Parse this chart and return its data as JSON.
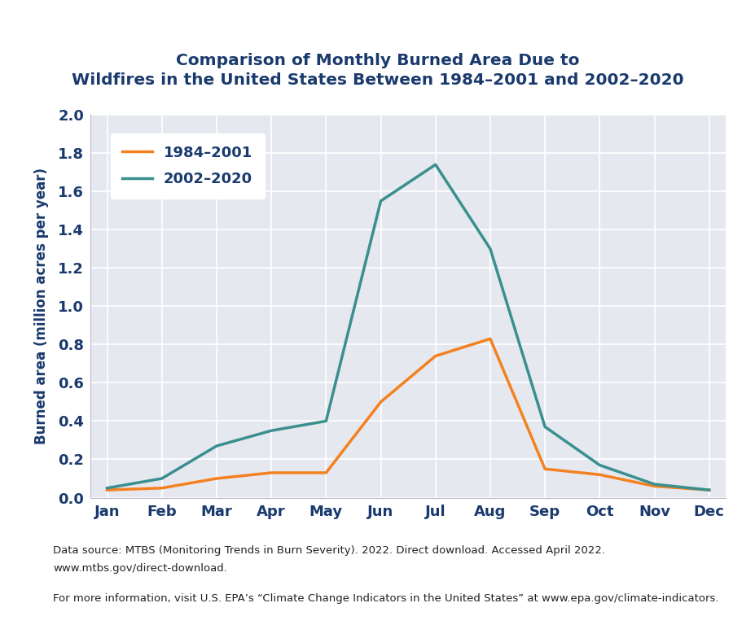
{
  "title_line1": "Comparison of Monthly Burned Area Due to",
  "title_line2": "Wildfires in the United States Between 1984–2001 and 2002–2020",
  "ylabel": "Burned area (million acres per year)",
  "months": [
    "Jan",
    "Feb",
    "Mar",
    "Apr",
    "May",
    "Jun",
    "Jul",
    "Aug",
    "Sep",
    "Oct",
    "Nov",
    "Dec"
  ],
  "series_1984": [
    0.04,
    0.05,
    0.1,
    0.13,
    0.13,
    0.5,
    0.74,
    0.83,
    0.15,
    0.12,
    0.06,
    0.04
  ],
  "series_2002": [
    0.05,
    0.1,
    0.27,
    0.35,
    0.4,
    1.55,
    1.74,
    1.3,
    0.37,
    0.17,
    0.07,
    0.04
  ],
  "color_1984": "#f4811f",
  "color_2002": "#3a8f8f",
  "label_1984": "1984–2001",
  "label_2002": "2002–2020",
  "ylim": [
    0,
    2.0
  ],
  "yticks": [
    0.0,
    0.2,
    0.4,
    0.6,
    0.8,
    1.0,
    1.2,
    1.4,
    1.6,
    1.8,
    2.0
  ],
  "title_color": "#1a3a6e",
  "title_fontsize": 14.5,
  "axis_label_color": "#1a3a6e",
  "tick_label_color": "#1a3a6e",
  "legend_label_color": "#1a3a6e",
  "line_width": 2.5,
  "plot_bg_color": "#e6e8f0",
  "fig_bg_color": "#ffffff",
  "grid_color": "#ffffff",
  "footnote1": "Data source: MTBS (Monitoring Trends in Burn Severity). 2022. Direct download. Accessed April 2022.",
  "footnote2": "www.mtbs.gov/direct-download.",
  "footnote3": "For more information, visit U.S. EPA’s “Climate Change Indicators in the United States” at www.epa.gov/climate-indicators."
}
